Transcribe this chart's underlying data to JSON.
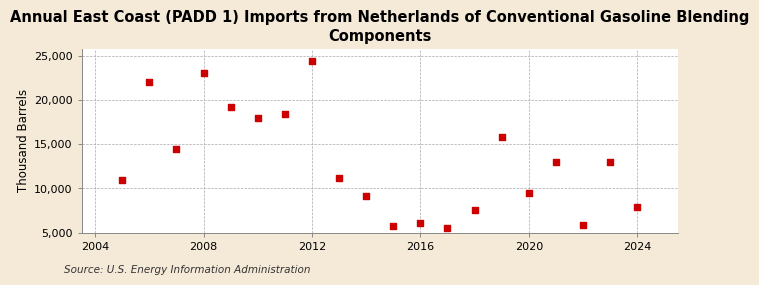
{
  "title": "Annual East Coast (PADD 1) Imports from Netherlands of Conventional Gasoline Blending\nComponents",
  "ylabel": "Thousand Barrels",
  "source": "Source: U.S. Energy Information Administration",
  "x_data": [
    2005,
    2006,
    2007,
    2008,
    2009,
    2010,
    2011,
    2012,
    2013,
    2014,
    2015,
    2016,
    2017,
    2018,
    2019,
    2020,
    2021,
    2022,
    2023,
    2024
  ],
  "y_data": [
    10900,
    22000,
    14400,
    23000,
    19200,
    17900,
    18400,
    24400,
    11200,
    9100,
    5700,
    6100,
    5500,
    7600,
    15800,
    9500,
    13000,
    5900,
    13000,
    7900
  ],
  "marker_color": "#cc0000",
  "marker_size": 16,
  "background_color": "#f5ead8",
  "plot_bg_color": "#ffffff",
  "grid_color": "#aaaaaa",
  "xlim": [
    2003.5,
    2025.5
  ],
  "ylim": [
    5000,
    25800
  ],
  "yticks": [
    5000,
    10000,
    15000,
    20000,
    25000
  ],
  "ytick_labels": [
    "5,000",
    "10,000",
    "15,000",
    "20,000",
    "25,000"
  ],
  "xticks": [
    2004,
    2008,
    2012,
    2016,
    2020,
    2024
  ],
  "title_fontsize": 10.5,
  "axis_fontsize": 8.5,
  "tick_fontsize": 8,
  "source_fontsize": 7.5
}
